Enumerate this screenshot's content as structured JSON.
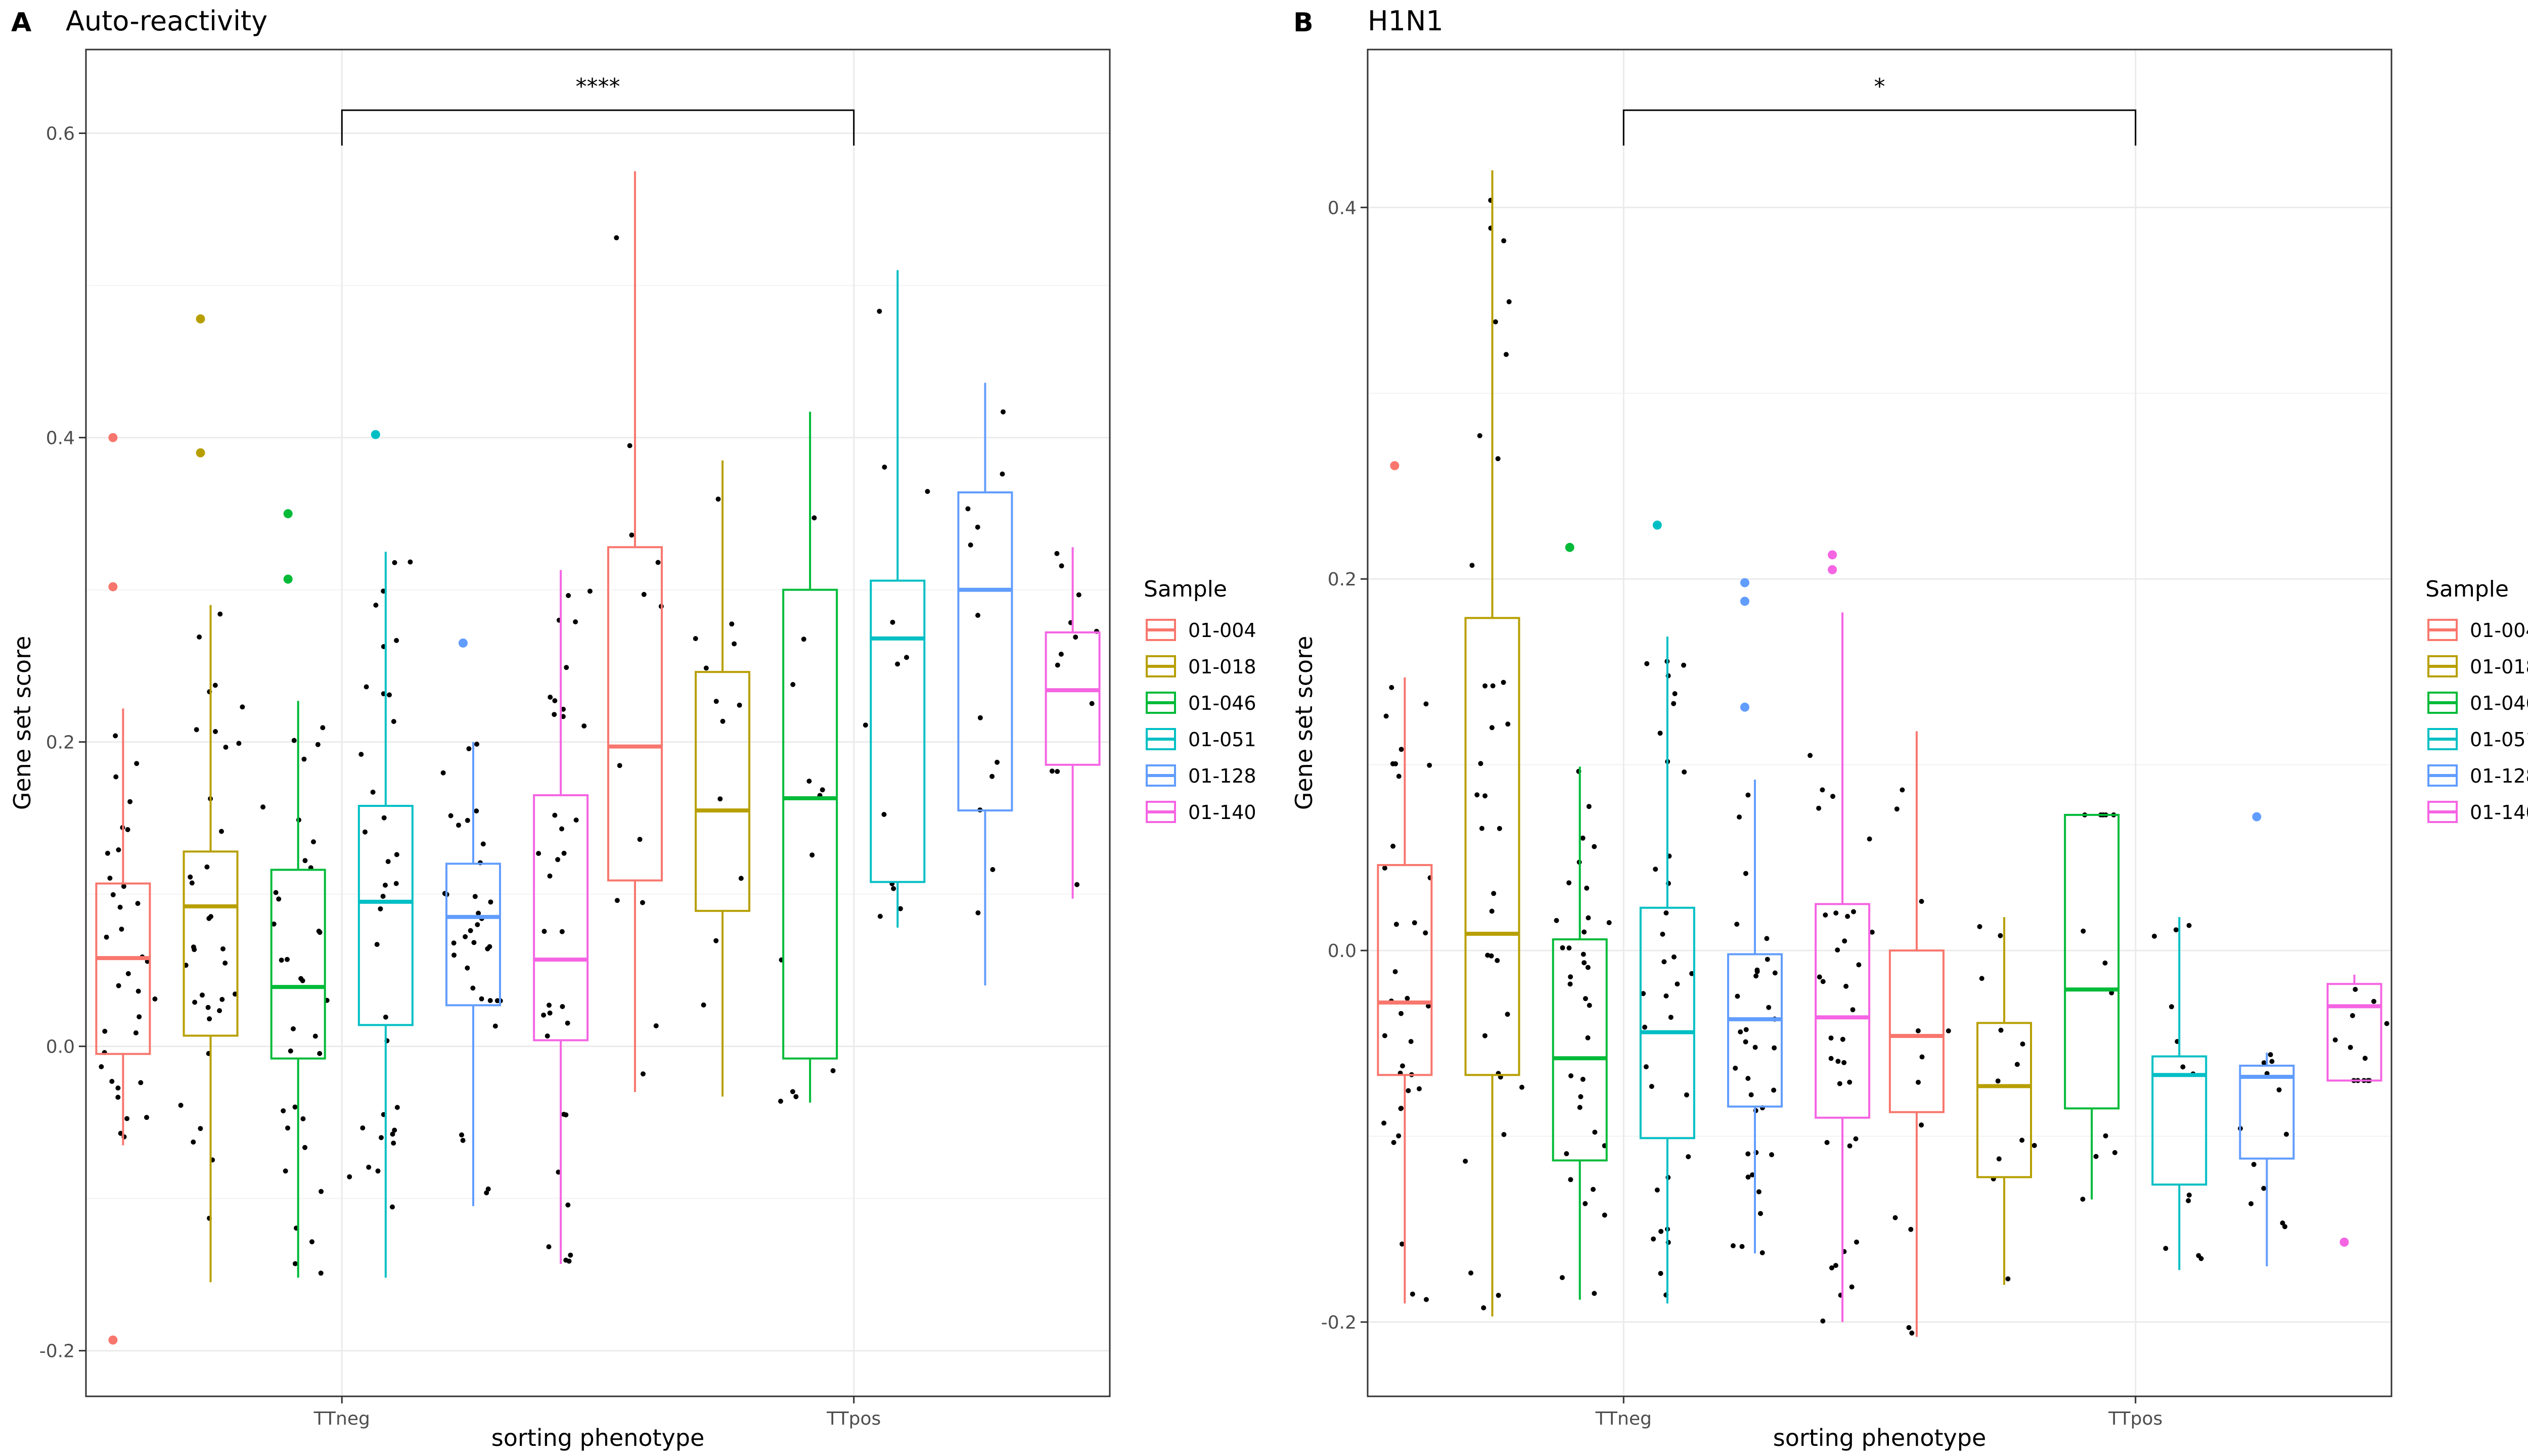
{
  "figure": {
    "panels": [
      {
        "letter": "A",
        "title": "Auto-reactivity"
      },
      {
        "letter": "B",
        "title": "H1N1"
      }
    ],
    "xlabel": "sorting phenotype",
    "ylabel": "Gene set score",
    "legend": {
      "title": "Sample",
      "position": "right"
    }
  },
  "colors": {
    "01-004": "#F8766D",
    "01-018": "#B79F00",
    "01-046": "#00BA38",
    "01-051": "#00BFC4",
    "01-128": "#619CFF",
    "01-140": "#F564E3",
    "points": "#000000",
    "grid": "#EBEBEB",
    "panel_border": "#333333"
  },
  "chart_data": [
    {
      "type": "box",
      "title": "Auto-reactivity",
      "panel_letter": "A",
      "xlabel": "sorting phenotype",
      "ylabel": "Gene set score",
      "categories": [
        "TTneg",
        "TTpos"
      ],
      "ylim": [
        -0.23,
        0.655
      ],
      "yticks": [
        -0.2,
        0.0,
        0.2,
        0.4,
        0.6
      ],
      "ytick_labels": [
        "-0.2",
        "0.0",
        "0.2",
        "0.4",
        "0.6"
      ],
      "grid": true,
      "legend_title": "Sample",
      "legend_position": "right",
      "significance": {
        "from": "TTneg",
        "to": "TTpos",
        "label": "****"
      },
      "series": [
        {
          "name": "01-004",
          "color": "#F8766D",
          "boxes": [
            {
              "category": "TTneg",
              "lower": -0.065,
              "q1": -0.005,
              "median": 0.058,
              "q3": 0.107,
              "upper": 0.222,
              "outliers": [
                0.4,
                0.302,
                -0.193
              ]
            },
            {
              "category": "TTpos",
              "lower": -0.03,
              "q1": 0.109,
              "median": 0.197,
              "q3": 0.328,
              "upper": 0.575,
              "outliers": []
            }
          ]
        },
        {
          "name": "01-018",
          "color": "#B79F00",
          "boxes": [
            {
              "category": "TTneg",
              "lower": -0.155,
              "q1": 0.007,
              "median": 0.092,
              "q3": 0.128,
              "upper": 0.29,
              "outliers": [
                0.478,
                0.39
              ]
            },
            {
              "category": "TTpos",
              "lower": -0.033,
              "q1": 0.089,
              "median": 0.155,
              "q3": 0.246,
              "upper": 0.385,
              "outliers": []
            }
          ]
        },
        {
          "name": "01-046",
          "color": "#00BA38",
          "boxes": [
            {
              "category": "TTneg",
              "lower": -0.152,
              "q1": -0.008,
              "median": 0.039,
              "q3": 0.116,
              "upper": 0.227,
              "outliers": [
                0.35,
                0.307
              ]
            },
            {
              "category": "TTpos",
              "lower": -0.037,
              "q1": -0.008,
              "median": 0.163,
              "q3": 0.3,
              "upper": 0.417,
              "outliers": []
            }
          ]
        },
        {
          "name": "01-051",
          "color": "#00BFC4",
          "boxes": [
            {
              "category": "TTneg",
              "lower": -0.152,
              "q1": 0.014,
              "median": 0.095,
              "q3": 0.158,
              "upper": 0.325,
              "outliers": [
                0.402
              ]
            },
            {
              "category": "TTpos",
              "lower": 0.078,
              "q1": 0.108,
              "median": 0.268,
              "q3": 0.306,
              "upper": 0.51,
              "outliers": []
            }
          ]
        },
        {
          "name": "01-128",
          "color": "#619CFF",
          "boxes": [
            {
              "category": "TTneg",
              "lower": -0.105,
              "q1": 0.027,
              "median": 0.085,
              "q3": 0.12,
              "upper": 0.2,
              "outliers": [
                0.265
              ]
            },
            {
              "category": "TTpos",
              "lower": 0.04,
              "q1": 0.155,
              "median": 0.3,
              "q3": 0.364,
              "upper": 0.436,
              "outliers": []
            }
          ]
        },
        {
          "name": "01-140",
          "color": "#F564E3",
          "boxes": [
            {
              "category": "TTneg",
              "lower": -0.143,
              "q1": 0.004,
              "median": 0.057,
              "q3": 0.165,
              "upper": 0.313,
              "outliers": []
            },
            {
              "category": "TTpos",
              "lower": 0.097,
              "q1": 0.185,
              "median": 0.234,
              "q3": 0.272,
              "upper": 0.328,
              "outliers": []
            }
          ]
        }
      ]
    },
    {
      "type": "box",
      "title": "H1N1",
      "panel_letter": "B",
      "xlabel": "sorting phenotype",
      "ylabel": "Gene set score",
      "categories": [
        "TTneg",
        "TTpos"
      ],
      "ylim": [
        -0.24,
        0.485
      ],
      "yticks": [
        -0.2,
        0.0,
        0.2,
        0.4
      ],
      "ytick_labels": [
        "-0.2",
        "0.0",
        "0.2",
        "0.4"
      ],
      "grid": true,
      "legend_title": "Sample",
      "legend_position": "right",
      "significance": {
        "from": "TTneg",
        "to": "TTpos",
        "label": "*"
      },
      "series": [
        {
          "name": "01-004",
          "color": "#F8766D",
          "boxes": [
            {
              "category": "TTneg",
              "lower": -0.19,
              "q1": -0.067,
              "median": -0.028,
              "q3": 0.046,
              "upper": 0.147,
              "outliers": [
                0.261
              ]
            },
            {
              "category": "TTpos",
              "lower": -0.208,
              "q1": -0.087,
              "median": -0.046,
              "q3": 0.0,
              "upper": 0.118,
              "outliers": []
            }
          ]
        },
        {
          "name": "01-018",
          "color": "#B79F00",
          "boxes": [
            {
              "category": "TTneg",
              "lower": -0.197,
              "q1": -0.067,
              "median": 0.009,
              "q3": 0.179,
              "upper": 0.42,
              "outliers": []
            },
            {
              "category": "TTpos",
              "lower": -0.18,
              "q1": -0.122,
              "median": -0.073,
              "q3": -0.039,
              "upper": 0.018,
              "outliers": []
            }
          ]
        },
        {
          "name": "01-046",
          "color": "#00BA38",
          "boxes": [
            {
              "category": "TTneg",
              "lower": -0.188,
              "q1": -0.113,
              "median": -0.058,
              "q3": 0.006,
              "upper": 0.099,
              "outliers": [
                0.217
              ]
            },
            {
              "category": "TTpos",
              "lower": -0.134,
              "q1": -0.085,
              "median": -0.021,
              "q3": 0.073,
              "upper": 0.073,
              "outliers": []
            }
          ]
        },
        {
          "name": "01-051",
          "color": "#00BFC4",
          "boxes": [
            {
              "category": "TTneg",
              "lower": -0.19,
              "q1": -0.101,
              "median": -0.044,
              "q3": 0.023,
              "upper": 0.169,
              "outliers": [
                0.229
              ]
            },
            {
              "category": "TTpos",
              "lower": -0.172,
              "q1": -0.126,
              "median": -0.067,
              "q3": -0.057,
              "upper": 0.018,
              "outliers": []
            }
          ]
        },
        {
          "name": "01-128",
          "color": "#619CFF",
          "boxes": [
            {
              "category": "TTneg",
              "lower": -0.163,
              "q1": -0.084,
              "median": -0.037,
              "q3": -0.002,
              "upper": 0.092,
              "outliers": [
                0.198,
                0.188,
                0.131
              ]
            },
            {
              "category": "TTpos",
              "lower": -0.17,
              "q1": -0.112,
              "median": -0.068,
              "q3": -0.062,
              "upper": -0.055,
              "outliers": [
                0.072
              ]
            }
          ]
        },
        {
          "name": "01-140",
          "color": "#F564E3",
          "boxes": [
            {
              "category": "TTneg",
              "lower": -0.2,
              "q1": -0.09,
              "median": -0.036,
              "q3": 0.025,
              "upper": 0.182,
              "outliers": [
                0.213,
                0.205
              ]
            },
            {
              "category": "TTpos",
              "lower": -0.07,
              "q1": -0.07,
              "median": -0.03,
              "q3": -0.018,
              "upper": -0.013,
              "outliers": [
                -0.157
              ]
            }
          ]
        }
      ]
    }
  ]
}
